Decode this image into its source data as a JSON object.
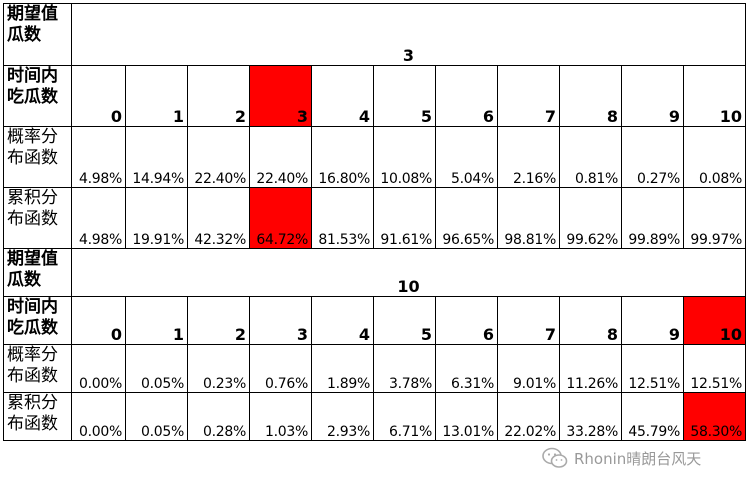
{
  "tables": [
    {
      "expected_label": [
        "期望值",
        "瓜数"
      ],
      "expected_value": "3",
      "count_label": [
        "时间内",
        "吃瓜数"
      ],
      "counts": [
        "0",
        "1",
        "2",
        "3",
        "4",
        "5",
        "6",
        "7",
        "8",
        "9",
        "10"
      ],
      "highlight_count_index": 3,
      "pmf_label": [
        "概率分",
        "布函数"
      ],
      "pmf": [
        "4.98%",
        "14.94%",
        "22.40%",
        "22.40%",
        "16.80%",
        "10.08%",
        "5.04%",
        "2.16%",
        "0.81%",
        "0.27%",
        "0.08%"
      ],
      "cdf_label": [
        "累积分",
        "布函数"
      ],
      "cdf": [
        "4.98%",
        "19.91%",
        "42.32%",
        "64.72%",
        "81.53%",
        "91.61%",
        "96.65%",
        "98.81%",
        "99.62%",
        "99.89%",
        "99.97%"
      ],
      "highlight_cdf_index": 3
    },
    {
      "expected_label": [
        "期望值",
        "瓜数"
      ],
      "expected_value": "10",
      "count_label": [
        "时间内",
        "吃瓜数"
      ],
      "counts": [
        "0",
        "1",
        "2",
        "3",
        "4",
        "5",
        "6",
        "7",
        "8",
        "9",
        "10"
      ],
      "highlight_count_index": 10,
      "pmf_label": [
        "概率分",
        "布函数"
      ],
      "pmf": [
        "0.00%",
        "0.05%",
        "0.23%",
        "0.76%",
        "1.89%",
        "3.78%",
        "6.31%",
        "9.01%",
        "11.26%",
        "12.51%",
        "12.51%"
      ],
      "cdf_label": [
        "累积分",
        "布函数"
      ],
      "cdf": [
        "0.00%",
        "0.05%",
        "0.28%",
        "1.03%",
        "2.93%",
        "6.71%",
        "13.01%",
        "22.02%",
        "33.28%",
        "45.79%",
        "58.30%"
      ],
      "highlight_cdf_index": 10
    }
  ],
  "highlight_color": "#ff0000",
  "watermark": {
    "icon": "wechat-icon",
    "text": "Rhonin晴朗台风天"
  }
}
